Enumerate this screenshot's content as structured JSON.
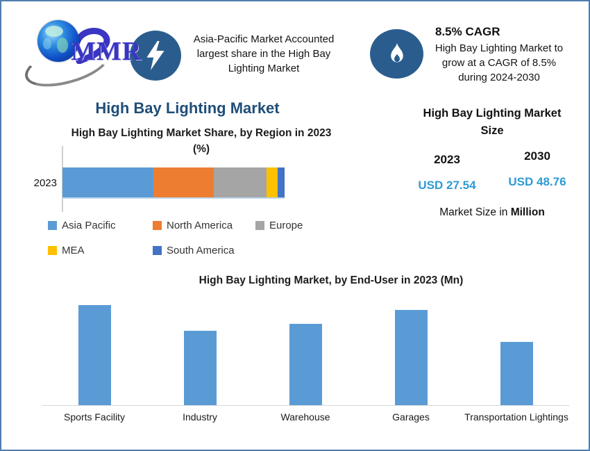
{
  "brand": {
    "name": "MMR"
  },
  "header": {
    "callout_region": {
      "icon": "lightning-bolt-icon",
      "text": "Asia-Pacific Market Accounted largest share in the High Bay Lighting Market"
    },
    "callout_cagr": {
      "icon": "flame-icon",
      "heading": "8.5% CAGR",
      "text": "High Bay Lighting Market to grow at a CAGR of 8.5% during 2024-2030"
    }
  },
  "page_title": "High Bay Lighting Market",
  "market_size_panel": {
    "title": "High Bay Lighting Market Size",
    "columns": [
      {
        "year": "2023",
        "value": "USD 27.54"
      },
      {
        "year": "2030",
        "value": "USD 48.76"
      }
    ],
    "footnote_prefix": "Market Size in ",
    "footnote_bold": "Million"
  },
  "colors": {
    "border": "#4E7CAE",
    "heading_navy": "#1F4E79",
    "value_blue": "#2E9AD4",
    "icon_badge_bg": "#2A5D8E",
    "bar_blue": "#5B9BD5"
  },
  "chart_data": [
    {
      "type": "bar",
      "subtype": "horizontal-stacked",
      "title": "High Bay Lighting Market Share, by Region in 2023 (%)",
      "categories": [
        "2023"
      ],
      "series": [
        {
          "name": "Asia Pacific",
          "color": "#5B9BD5",
          "values": [
            41
          ]
        },
        {
          "name": "North America",
          "color": "#ED7D31",
          "values": [
            27
          ]
        },
        {
          "name": "Europe",
          "color": "#A5A5A5",
          "values": [
            24
          ]
        },
        {
          "name": "MEA",
          "color": "#FFC000",
          "values": [
            5
          ]
        },
        {
          "name": "South America",
          "color": "#4472C4",
          "values": [
            3
          ]
        }
      ],
      "xlim": [
        0,
        100
      ],
      "grid": false,
      "legend_position": "bottom",
      "note": "Segment shares estimated from bar widths; no data labels shown in figure"
    },
    {
      "type": "bar",
      "title": "High Bay Lighting Market, by End-User in 2023 (Mn)",
      "categories": [
        "Sports Facility",
        "Industry",
        "Warehouse",
        "Garages",
        "Transportation Lightings"
      ],
      "values": [
        100,
        74,
        81,
        95,
        63
      ],
      "bar_color": "#5B9BD5",
      "ylim": [
        0,
        100
      ],
      "grid": false,
      "note": "No y-axis or value labels shown; values are relative bar heights (tallest = 100)"
    }
  ]
}
